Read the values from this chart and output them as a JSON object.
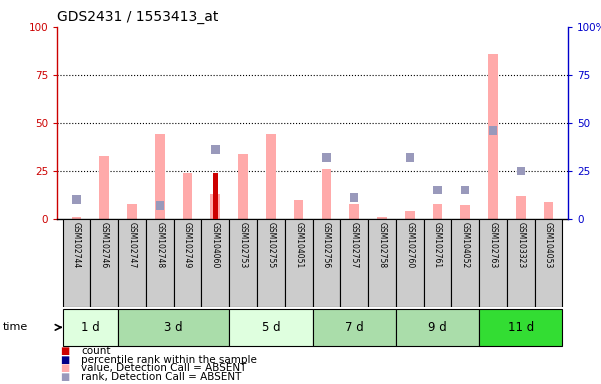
{
  "title": "GDS2431 / 1553413_at",
  "samples": [
    "GSM102744",
    "GSM102746",
    "GSM102747",
    "GSM102748",
    "GSM102749",
    "GSM104060",
    "GSM102753",
    "GSM102755",
    "GSM104051",
    "GSM102756",
    "GSM102757",
    "GSM102758",
    "GSM102760",
    "GSM102761",
    "GSM104052",
    "GSM102763",
    "GSM103323",
    "GSM104053"
  ],
  "pink_bars": [
    1,
    33,
    8,
    44,
    24,
    13,
    34,
    44,
    10,
    26,
    8,
    1,
    4,
    8,
    7,
    86,
    12,
    9
  ],
  "blue_squares": [
    10,
    0,
    0,
    7,
    0,
    36,
    0,
    0,
    0,
    32,
    11,
    0,
    32,
    15,
    15,
    46,
    25,
    0
  ],
  "red_bars": [
    0,
    0,
    0,
    0,
    0,
    24,
    0,
    0,
    0,
    0,
    0,
    0,
    0,
    0,
    0,
    0,
    0,
    0
  ],
  "red_bar_color": "#cc0000",
  "pink_bar_color": "#ffaaaa",
  "blue_sq_color": "#9999bb",
  "left_axis_color": "#cc0000",
  "right_axis_color": "#0000cc",
  "ylim": [
    0,
    100
  ],
  "yticks": [
    0,
    25,
    50,
    75,
    100
  ],
  "bg_color": "#ffffff",
  "plot_bg_color": "#ffffff",
  "label_bg_color": "#cccccc",
  "group_ranges": [
    [
      0,
      1
    ],
    [
      2,
      5
    ],
    [
      6,
      8
    ],
    [
      9,
      11
    ],
    [
      12,
      14
    ],
    [
      15,
      17
    ]
  ],
  "group_labels": [
    "1 d",
    "3 d",
    "5 d",
    "7 d",
    "9 d",
    "11 d"
  ],
  "group_colors": [
    "#dfffdf",
    "#aaddaa",
    "#dfffdf",
    "#aaddaa",
    "#aaddaa",
    "#33dd33"
  ],
  "legend_colors": [
    "#cc0000",
    "#000088",
    "#ffaaaa",
    "#9999bb"
  ],
  "legend_labels": [
    "count",
    "percentile rank within the sample",
    "value, Detection Call = ABSENT",
    "rank, Detection Call = ABSENT"
  ]
}
